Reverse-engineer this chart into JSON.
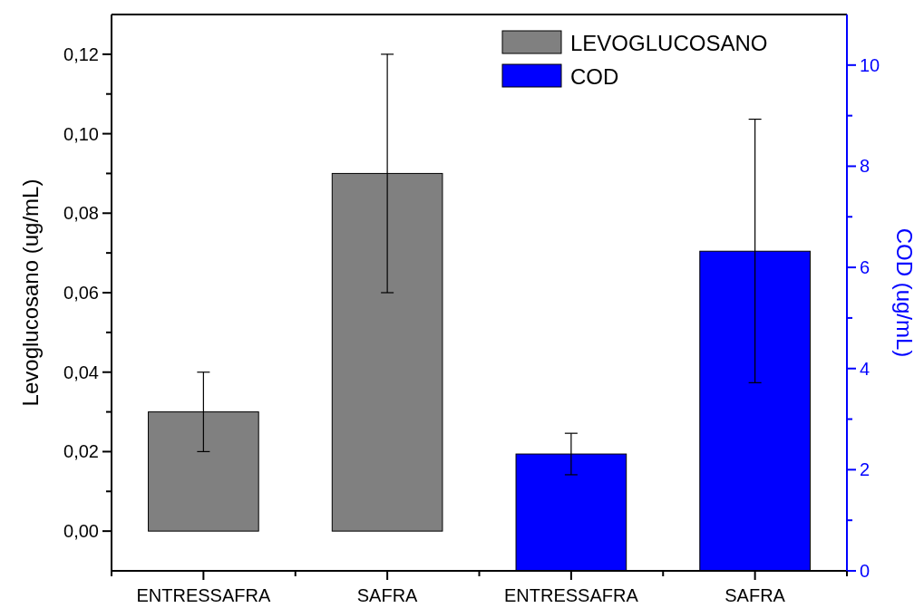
{
  "chart_data": {
    "type": "bar",
    "ylabel": "Levoglucosano (ug/mL)",
    "y2label": "COD (ug/mL)",
    "categories": [
      "ENTRESSAFRA",
      "SAFRA",
      "ENTRESSAFRA",
      "SAFRA"
    ],
    "series": [
      {
        "name": "LEVOGLUCOSANO",
        "color": "#808080",
        "values": [
          0.03,
          0.09,
          null,
          null
        ],
        "errors": [
          0.01,
          0.03,
          null,
          null
        ]
      },
      {
        "name": "COD",
        "color": "#0000ff",
        "axis": "y2",
        "values": [
          null,
          null,
          2.31,
          6.32
        ],
        "errors": [
          null,
          null,
          [
            1.9,
            2.72
          ],
          [
            3.72,
            8.93
          ]
        ]
      }
    ],
    "ylim": [
      -0.01,
      0.13
    ],
    "yticks": [
      {
        "value": 0,
        "label": "0,00"
      },
      {
        "value": 0.01,
        "label": null
      },
      {
        "value": 0.02,
        "label": "0,02"
      },
      {
        "value": 0.03,
        "label": null
      },
      {
        "value": 0.04,
        "label": "0,04"
      },
      {
        "value": 0.05,
        "label": null
      },
      {
        "value": 0.06,
        "label": "0,06"
      },
      {
        "value": 0.07,
        "label": null
      },
      {
        "value": 0.08,
        "label": "0,08"
      },
      {
        "value": 0.09,
        "label": null
      },
      {
        "value": 0.1,
        "label": "0,10"
      },
      {
        "value": 0.11,
        "label": null
      },
      {
        "value": 0.12,
        "label": "0,12"
      }
    ],
    "y2lim": [
      0,
      11
    ],
    "y2ticks": [
      0,
      {
        "value": 1,
        "label": null
      },
      2,
      {
        "value": 3,
        "label": null
      },
      4,
      {
        "value": 5,
        "label": null
      },
      6,
      {
        "value": 7,
        "label": null
      },
      8,
      {
        "value": 9,
        "label": null
      },
      10
    ],
    "legend": "top right"
  }
}
